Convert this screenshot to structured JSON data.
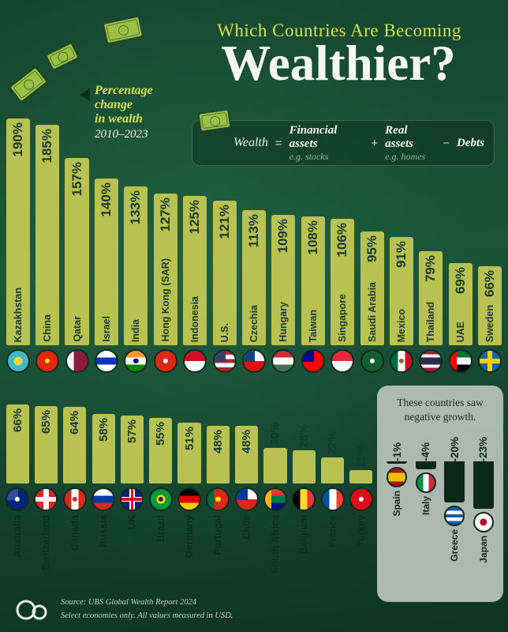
{
  "header": {
    "kicker": "Which Countries Are Becoming",
    "title": "Wealthier?",
    "annotation": {
      "line1": "Percentage change",
      "line2": "in wealth",
      "years": "2010–2023"
    }
  },
  "formula": {
    "lhs": "Wealth",
    "eq": "=",
    "term1": "Financial assets",
    "term1_sub": "e.g. stocks",
    "plus": "+",
    "term2": "Real assets",
    "term2_sub": "e.g. homes",
    "minus": "−",
    "term3": "Debts"
  },
  "negative_panel": {
    "note": "These countries saw negative growth."
  },
  "footer": {
    "source": "Source: UBS Global Wealth Report 2024",
    "note": "Select economies only. All values measured in USD."
  },
  "colors": {
    "bar": "#b9c153",
    "bar_label": "#17392a",
    "negative_bar": "#0c281b",
    "accent_yellow": "#d6e14e",
    "panel_gray": "#b9c3b8",
    "background_green": "#1b5437"
  },
  "chart_data": {
    "type": "bar",
    "title": "Which Countries Are Becoming Wealthier?",
    "ylabel": "Percentage change in wealth 2010–2023",
    "unit": "%",
    "legend_position": "none",
    "grid": false,
    "groups": [
      {
        "id": "top",
        "items": [
          {
            "country": "Kazakhstan",
            "value": 190,
            "label": "190%",
            "flag": {
              "colors": [
                "#3fb9ca"
              ],
              "dot": "#f6d44a"
            }
          },
          {
            "country": "China",
            "value": 185,
            "label": "185%",
            "flag": {
              "colors": [
                "#de2910"
              ],
              "dot2": "#ffde00"
            }
          },
          {
            "country": "Qatar",
            "value": 157,
            "label": "157%",
            "flag": {
              "dir": "v",
              "colors": [
                "#ffffff",
                "#8d1b3d",
                "#8d1b3d"
              ]
            }
          },
          {
            "country": "Israel",
            "value": 140,
            "label": "140%",
            "flag": {
              "colors": [
                "#ffffff",
                "#0038b8",
                "#ffffff"
              ],
              "dot2": "#0038b8"
            }
          },
          {
            "country": "India",
            "value": 133,
            "label": "133%",
            "flag": {
              "colors": [
                "#ff9933",
                "#ffffff",
                "#138808"
              ],
              "dot2": "#000080"
            }
          },
          {
            "country": "Hong Kong (SAR)",
            "value": 127,
            "label": "127%",
            "flag": {
              "colors": [
                "#de2910"
              ],
              "dot2": "#ffffff"
            }
          },
          {
            "country": "Indonesia",
            "value": 125,
            "label": "125%",
            "flag": {
              "colors": [
                "#ce1126",
                "#ffffff"
              ]
            }
          },
          {
            "country": "U.S.",
            "value": 121,
            "label": "121%",
            "flag": {
              "colors": [
                "#b22234",
                "#ffffff",
                "#b22234",
                "#ffffff",
                "#b22234"
              ],
              "canton": "#3c3b6e"
            }
          },
          {
            "country": "Czechia",
            "value": 113,
            "label": "113%",
            "flag": {
              "colors": [
                "#ffffff",
                "#d7141a"
              ],
              "canton": "#11457e"
            }
          },
          {
            "country": "Hungary",
            "value": 109,
            "label": "109%",
            "flag": {
              "colors": [
                "#ce2939",
                "#ffffff",
                "#477050"
              ]
            }
          },
          {
            "country": "Taiwan",
            "value": 108,
            "label": "108%",
            "flag": {
              "colors": [
                "#fe0000"
              ],
              "canton": "#000095"
            }
          },
          {
            "country": "Singapore",
            "value": 106,
            "label": "106%",
            "flag": {
              "colors": [
                "#ed2939",
                "#ffffff"
              ]
            }
          },
          {
            "country": "Saudi Arabia",
            "value": 95,
            "label": "95%",
            "flag": {
              "colors": [
                "#165d31"
              ],
              "dot2": "#ffffff"
            }
          },
          {
            "country": "Mexico",
            "value": 91,
            "label": "91%",
            "flag": {
              "dir": "v",
              "colors": [
                "#006847",
                "#ffffff",
                "#ce1126"
              ],
              "dot2": "#8c6239"
            }
          },
          {
            "country": "Thailand",
            "value": 79,
            "label": "79%",
            "flag": {
              "colors": [
                "#a51931",
                "#f4f5f8",
                "#2d2a4a",
                "#2d2a4a",
                "#f4f5f8",
                "#a51931"
              ]
            }
          },
          {
            "country": "UAE",
            "value": 69,
            "label": "69%",
            "flag": {
              "colors": [
                "#00732f",
                "#ffffff",
                "#000000"
              ],
              "leftband": "#ff0000"
            }
          },
          {
            "country": "Sweden",
            "value": 66,
            "label": "66%",
            "flag": {
              "colors": [
                "#006aa7"
              ],
              "cross": "#fecc00"
            }
          }
        ]
      },
      {
        "id": "bottom",
        "items": [
          {
            "country": "Australia",
            "value": 66,
            "label": "66%",
            "flag": {
              "colors": [
                "#00247d"
              ],
              "canton": "#2f4f9e",
              "dot2": "#ffffff"
            }
          },
          {
            "country": "Switzerland",
            "value": 65,
            "label": "65%",
            "flag": {
              "colors": [
                "#d52b1e"
              ],
              "cross": "#ffffff"
            }
          },
          {
            "country": "Canada",
            "value": 64,
            "label": "64%",
            "flag": {
              "dir": "v",
              "colors": [
                "#d52b1e",
                "#ffffff",
                "#d52b1e"
              ],
              "dot2": "#d52b1e"
            }
          },
          {
            "country": "Russia",
            "value": 58,
            "label": "58%",
            "flag": {
              "colors": [
                "#ffffff",
                "#0039a6",
                "#d52b1e"
              ]
            }
          },
          {
            "country": "UK",
            "value": 57,
            "label": "57%",
            "flag": {
              "colors": [
                "#00247d"
              ],
              "cross": "#ffffff",
              "cross2": "#cf142b"
            }
          },
          {
            "country": "Brazil",
            "value": 55,
            "label": "55%",
            "flag": {
              "colors": [
                "#009c3b"
              ],
              "dot": "#ffdf00",
              "dot2": "#002776"
            }
          },
          {
            "country": "Germany",
            "value": 51,
            "label": "51%",
            "flag": {
              "colors": [
                "#000000",
                "#dd0000",
                "#ffce00"
              ]
            }
          },
          {
            "country": "Portugal",
            "value": 48,
            "label": "48%",
            "flag": {
              "dir": "v",
              "colors": [
                "#046a38",
                "#da291c",
                "#da291c"
              ],
              "dot2": "#ffe900"
            }
          },
          {
            "country": "Chile",
            "value": 48,
            "label": "48%",
            "flag": {
              "colors": [
                "#ffffff",
                "#d52b1e"
              ],
              "canton": "#0039a6"
            }
          },
          {
            "country": "South Africa",
            "value": 30,
            "label": "30%",
            "flag": {
              "colors": [
                "#de3831",
                "#007749",
                "#001489"
              ],
              "leftband": "#ffb612"
            }
          },
          {
            "country": "Belgium",
            "value": 28,
            "label": "28%",
            "flag": {
              "dir": "v",
              "colors": [
                "#000000",
                "#fdda24",
                "#ef3340"
              ]
            }
          },
          {
            "country": "France",
            "value": 22,
            "label": "22%",
            "flag": {
              "dir": "v",
              "colors": [
                "#0055a4",
                "#ffffff",
                "#ef4135"
              ]
            }
          },
          {
            "country": "Turkey",
            "value": 11,
            "label": "11%",
            "flag": {
              "colors": [
                "#e30a17"
              ],
              "dot2": "#ffffff"
            }
          }
        ]
      },
      {
        "id": "negative",
        "items": [
          {
            "country": "Spain",
            "value": -1,
            "label": "-1%",
            "flag": {
              "colors": [
                "#aa151b",
                "#f1bf00",
                "#f1bf00",
                "#aa151b"
              ]
            }
          },
          {
            "country": "Italy",
            "value": -4,
            "label": "-4%",
            "flag": {
              "dir": "v",
              "colors": [
                "#009246",
                "#ffffff",
                "#ce2b37"
              ]
            }
          },
          {
            "country": "Greece",
            "value": -20,
            "label": "-20%",
            "flag": {
              "colors": [
                "#0d5eaf",
                "#ffffff",
                "#0d5eaf",
                "#ffffff",
                "#0d5eaf"
              ]
            }
          },
          {
            "country": "Japan",
            "value": -23,
            "label": "-23%",
            "flag": {
              "colors": [
                "#ffffff"
              ],
              "dot": "#bc002d"
            }
          }
        ]
      }
    ]
  }
}
